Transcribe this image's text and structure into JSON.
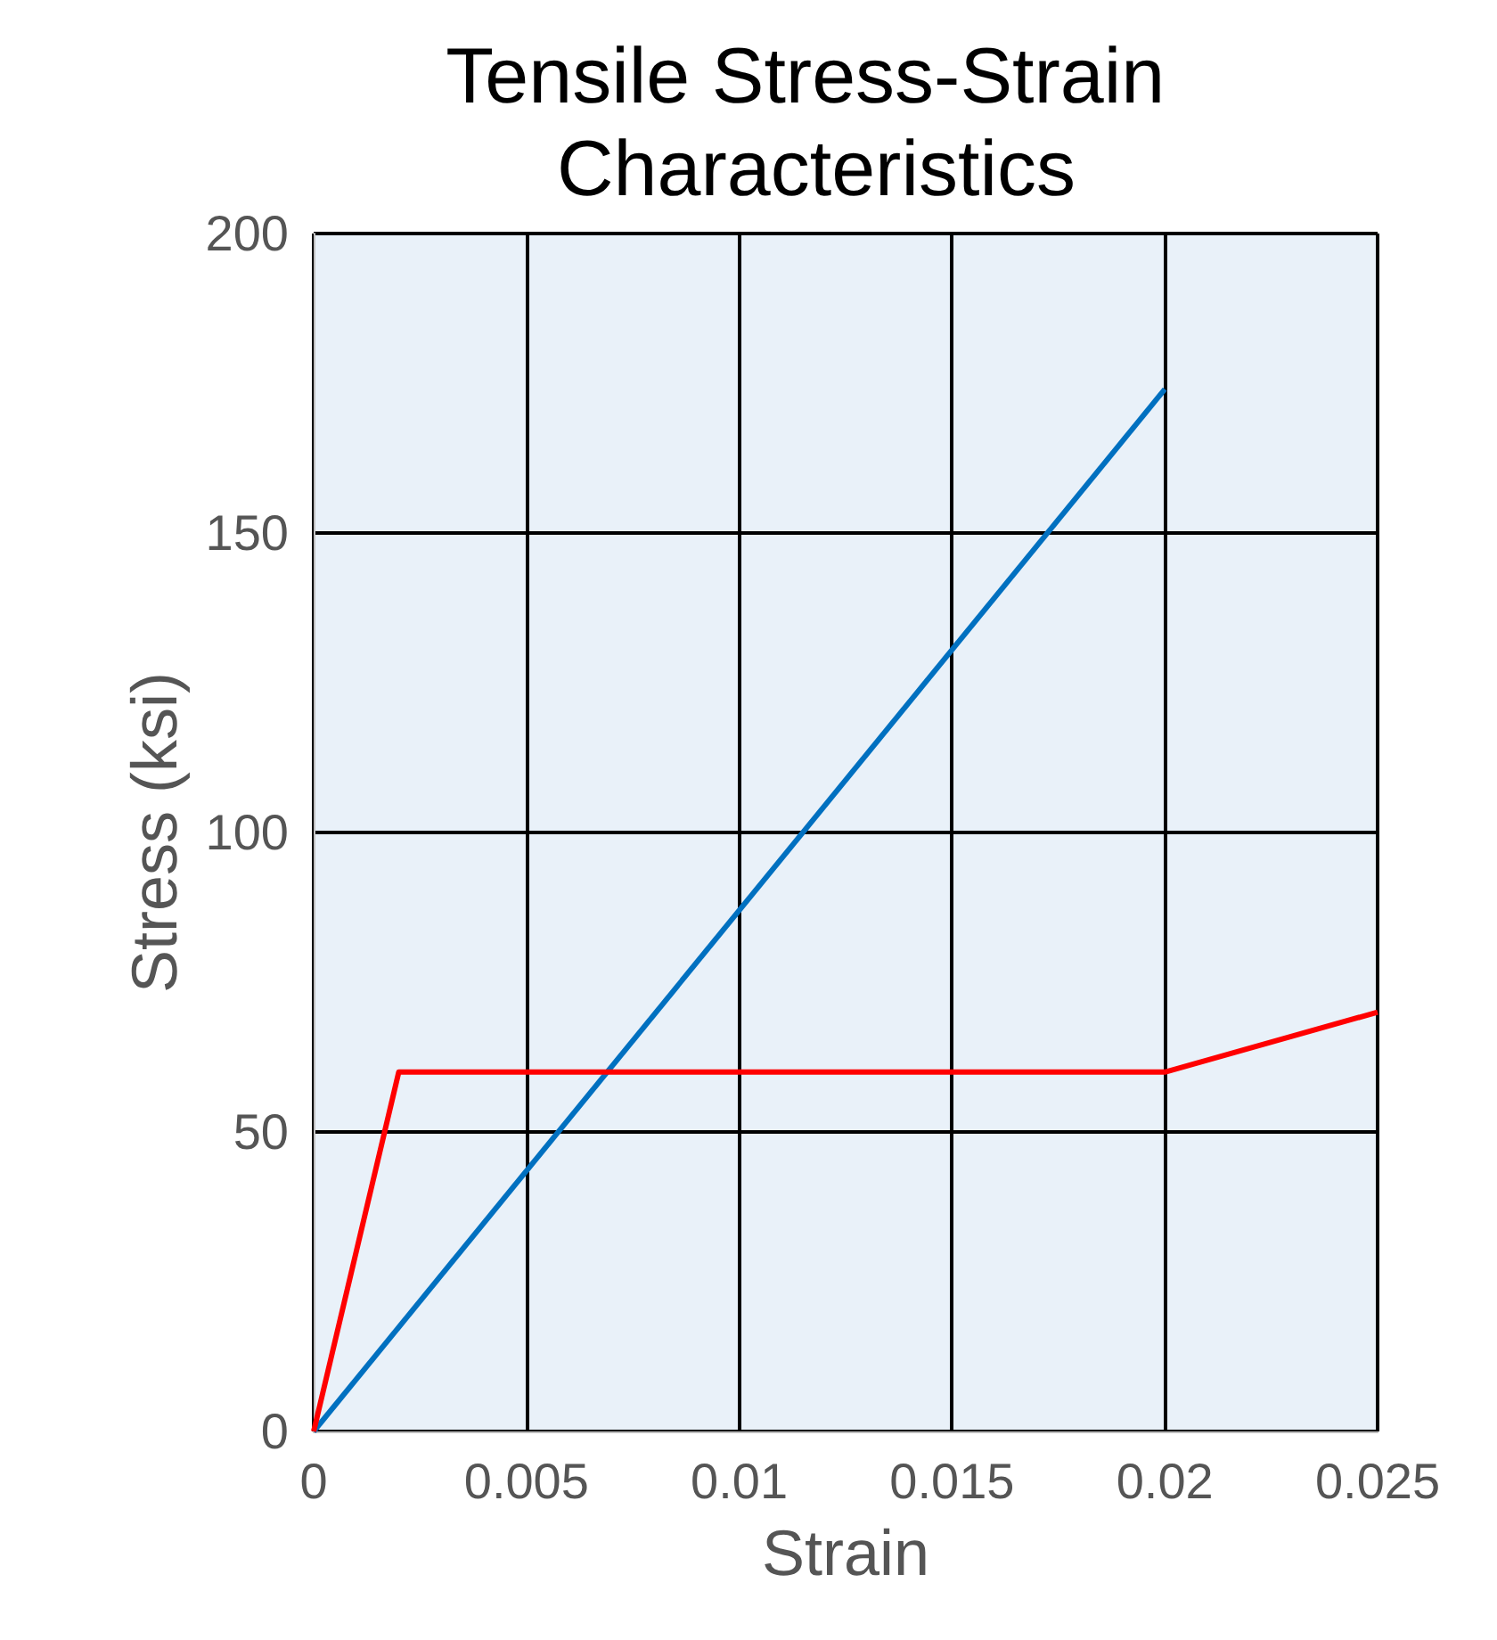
{
  "chart_data": {
    "type": "line",
    "title": "Tensile Stress-Strain Characteristics",
    "xlabel": "Strain",
    "ylabel": "Stress (ksi)",
    "series": [
      {
        "color": "#0070c0",
        "x": [
          0,
          0.02
        ],
        "values": [
          0,
          174
        ]
      },
      {
        "color": "#ff0000",
        "x": [
          0,
          0.002,
          0.02,
          0.025
        ],
        "values": [
          0,
          60,
          60,
          70
        ]
      }
    ],
    "xlim": [
      0,
      0.025
    ],
    "xticks": [
      0,
      0.005,
      0.01,
      0.015,
      0.02,
      0.025
    ],
    "ylim": [
      0,
      200
    ],
    "yticks": [
      0,
      50,
      100,
      150,
      200
    ],
    "grid": true,
    "marker": "none",
    "line_style": "solid"
  }
}
